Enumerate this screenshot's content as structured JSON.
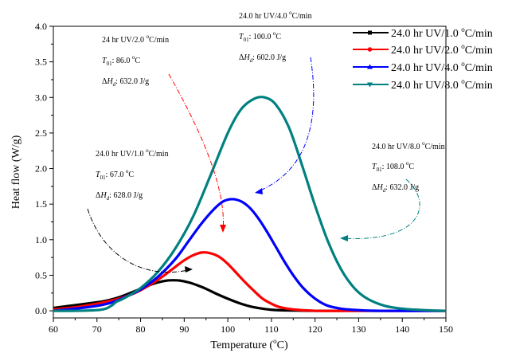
{
  "chart_data": {
    "type": "line",
    "xlabel": "Temperature (",
    "xlabel_unit": "C",
    "xlabel_close": ")",
    "degree_symbol": "o",
    "ylabel": "Heat flow (W/g)",
    "xlim": [
      60,
      150
    ],
    "ylim": [
      -0.1,
      4.0
    ],
    "xticks": [
      "60",
      "70",
      "80",
      "90",
      "100",
      "110",
      "120",
      "130",
      "140",
      "150"
    ],
    "yticks": [
      "0.0",
      "0.5",
      "1.0",
      "1.5",
      "2.0",
      "2.5",
      "3.0",
      "3.5",
      "4.0"
    ],
    "legend_position": "top-right",
    "series": [
      {
        "name": "24.0 hr UV/1.0 °C/min",
        "legend_prefix": "24.0 hr UV/1.0 ",
        "legend_suffix": "C/min",
        "color": "#000000",
        "marker": "square",
        "x": [
          60,
          65,
          70,
          72,
          75,
          78,
          80,
          82,
          84,
          86,
          87.5,
          89,
          91,
          93,
          95,
          97,
          100,
          103,
          106,
          110,
          115,
          120,
          130,
          150
        ],
        "y": [
          0.04,
          0.08,
          0.12,
          0.14,
          0.19,
          0.26,
          0.31,
          0.36,
          0.4,
          0.425,
          0.43,
          0.425,
          0.4,
          0.36,
          0.31,
          0.25,
          0.17,
          0.1,
          0.05,
          0.015,
          0.005,
          0.0,
          0.0,
          0.0
        ]
      },
      {
        "name": "24.0 hr UV/2.0 °C/min",
        "legend_prefix": "24.0 hr UV/2.0 ",
        "legend_suffix": "C/min",
        "color": "#ff0000",
        "marker": "circle",
        "x": [
          60,
          65,
          70,
          73,
          76,
          79,
          82,
          85,
          88,
          90,
          92,
          94,
          96,
          98,
          100,
          102,
          104,
          106,
          108,
          110,
          112,
          115,
          120,
          130,
          150
        ],
        "y": [
          0.02,
          0.05,
          0.1,
          0.14,
          0.19,
          0.26,
          0.36,
          0.48,
          0.62,
          0.71,
          0.78,
          0.82,
          0.81,
          0.76,
          0.66,
          0.53,
          0.4,
          0.28,
          0.17,
          0.1,
          0.05,
          0.02,
          0.0,
          0.0,
          0.0
        ]
      },
      {
        "name": "24.0 hr UV/4.0 °C/min",
        "legend_prefix": "24.0 hr UV/4.0 ",
        "legend_suffix": "C/min",
        "color": "#0000ff",
        "marker": "triangle-up",
        "x": [
          60,
          65,
          70,
          73,
          76,
          80,
          84,
          88,
          91,
          94,
          97,
          99,
          101,
          103,
          105,
          107,
          109,
          111,
          113,
          115,
          117,
          119,
          121,
          123,
          126,
          130,
          135,
          150
        ],
        "y": [
          0.0,
          0.03,
          0.07,
          0.11,
          0.18,
          0.3,
          0.48,
          0.73,
          0.98,
          1.23,
          1.44,
          1.54,
          1.57,
          1.54,
          1.45,
          1.3,
          1.11,
          0.9,
          0.69,
          0.5,
          0.34,
          0.22,
          0.13,
          0.07,
          0.03,
          0.01,
          0.0,
          0.0
        ]
      },
      {
        "name": "24.0 hr UV/8.0 °C/min",
        "legend_prefix": "24.0 hr UV/8.0 ",
        "legend_suffix": "C/min",
        "color": "#008080",
        "marker": "triangle-down",
        "x": [
          60,
          65,
          70,
          72,
          73.5,
          74.5,
          76,
          80,
          84,
          88,
          92,
          96,
          100,
          103,
          106,
          108.5,
          111,
          114,
          117,
          120,
          123,
          126,
          129,
          132,
          136,
          140,
          145,
          150
        ],
        "y": [
          0.0,
          0.0,
          0.01,
          0.03,
          0.08,
          0.13,
          0.17,
          0.32,
          0.55,
          0.88,
          1.32,
          1.9,
          2.5,
          2.83,
          2.98,
          3.0,
          2.9,
          2.58,
          2.05,
          1.48,
          0.97,
          0.58,
          0.32,
          0.17,
          0.07,
          0.03,
          0.01,
          0.0
        ]
      }
    ],
    "annotations": [
      {
        "line1": "24.0 hr UV/1.0 °C/min",
        "l1_prefix": "24.0 hr UV/1.0 ",
        "l1_suffix": "C/min",
        "line2": "T01: 67.0 °C",
        "l2_t": "T",
        "l2_sub": "01",
        "l2_value": ": 67.0 ",
        "l2_unit": "C",
        "line3": "ΔHd: 628.0 J/g",
        "l3_delta": "Δ",
        "l3_h": "H",
        "l3_sub": "d",
        "l3_value": ": 628.0 J/g",
        "color": "#000000"
      },
      {
        "line1": "24 hr UV/2.0 °C/min",
        "l1_prefix": "24 hr UV/2.0 ",
        "l1_suffix": "C/min",
        "line2": "T01: 86.0 °C",
        "l2_t": "T",
        "l2_sub": "01",
        "l2_value": ": 86.0 ",
        "l2_unit": "C",
        "line3": "ΔHd: 632.0 J/g",
        "l3_delta": "Δ",
        "l3_h": "H",
        "l3_sub": "d",
        "l3_value": ": 632.0 J/g",
        "color": "#ff0000"
      },
      {
        "line1": "24.0 hr UV/4.0 °C/min",
        "l1_prefix": "24.0 hr UV/4.0 ",
        "l1_suffix": "C/min",
        "line2": "T01: 100.0 °C",
        "l2_t": "T",
        "l2_sub": "01",
        "l2_value": ": 100.0 ",
        "l2_unit": "C",
        "line3": "ΔHd: 602.0 J/g",
        "l3_delta": "Δ",
        "l3_h": "H",
        "l3_sub": "d",
        "l3_value": ": 602.0 J/g",
        "color": "#0000ff"
      },
      {
        "line1": "24.0 hr UV/8.0 °C/min",
        "l1_prefix": "24.0 hr UV/8.0 ",
        "l1_suffix": "C/min",
        "line2": "T01: 108.0 °C",
        "l2_t": "T",
        "l2_sub": "01",
        "l2_value": ": 108.0 ",
        "l2_unit": "C",
        "line3": "ΔHd: 632.0 J/g",
        "l3_delta": "Δ",
        "l3_h": "H",
        "l3_sub": "d",
        "l3_value": ": 632.0 J/g",
        "color": "#008080"
      }
    ]
  }
}
